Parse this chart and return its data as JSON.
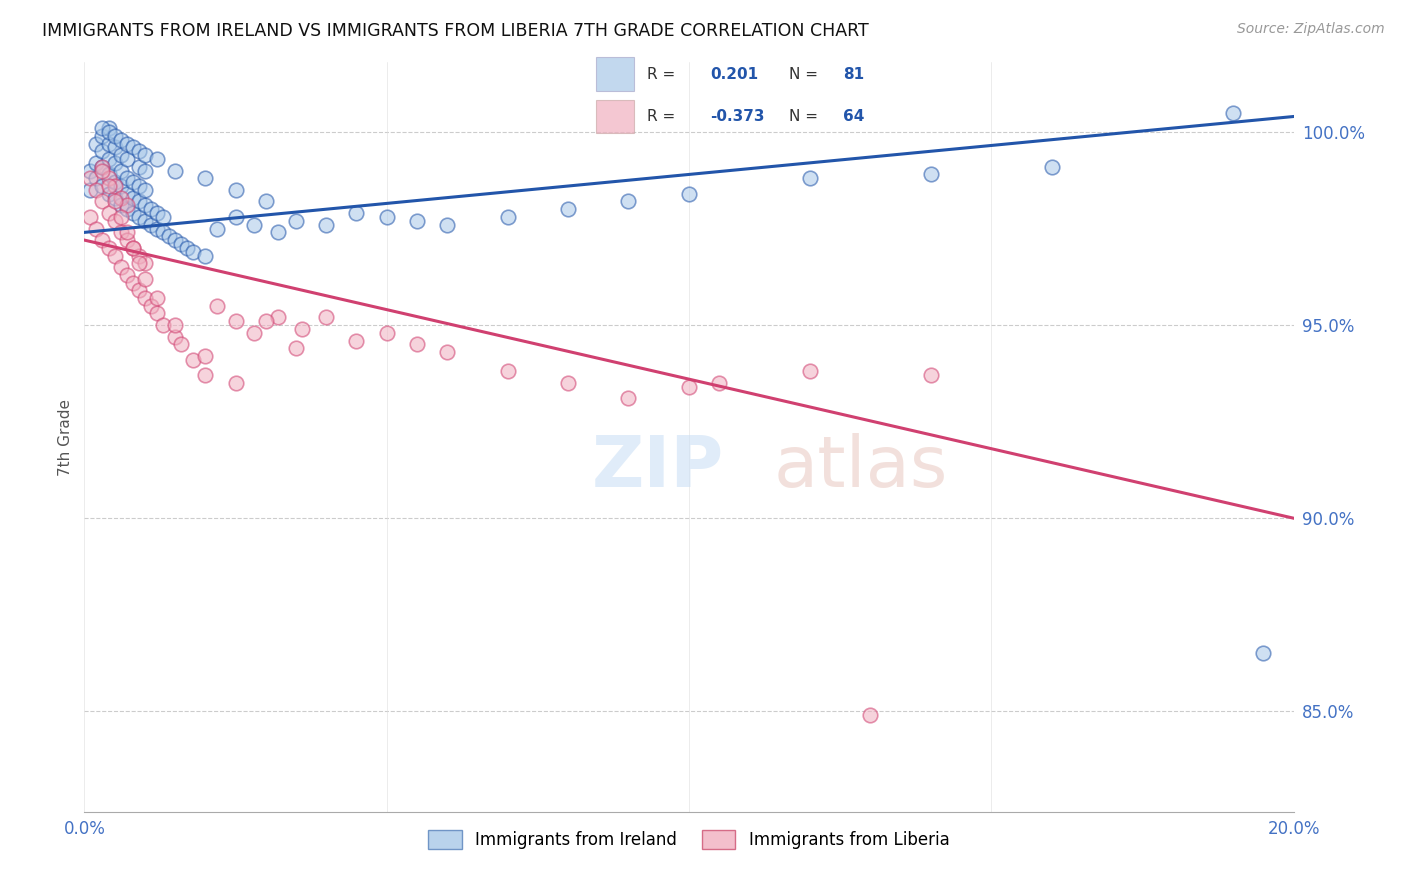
{
  "title": "IMMIGRANTS FROM IRELAND VS IMMIGRANTS FROM LIBERIA 7TH GRADE CORRELATION CHART",
  "source": "Source: ZipAtlas.com",
  "ylabel": "7th Grade",
  "xmin": 0.0,
  "xmax": 0.2,
  "ymin": 0.824,
  "ymax": 1.018,
  "yticks": [
    0.85,
    0.9,
    0.95,
    1.0
  ],
  "ytick_labels": [
    "85.0%",
    "90.0%",
    "95.0%",
    "100.0%"
  ],
  "xticks": [
    0.0,
    0.05,
    0.1,
    0.15,
    0.2
  ],
  "ireland_R": 0.201,
  "ireland_N": 81,
  "liberia_R": -0.373,
  "liberia_N": 64,
  "ireland_color": "#a8c8e8",
  "liberia_color": "#f0b0c0",
  "ireland_line_color": "#2255aa",
  "liberia_line_color": "#d04070",
  "ireland_line_y0": 0.974,
  "ireland_line_y1": 1.004,
  "liberia_line_y0": 0.972,
  "liberia_line_y1": 0.9,
  "ireland_x": [
    0.001,
    0.001,
    0.002,
    0.002,
    0.002,
    0.003,
    0.003,
    0.003,
    0.003,
    0.004,
    0.004,
    0.004,
    0.004,
    0.004,
    0.005,
    0.005,
    0.005,
    0.005,
    0.006,
    0.006,
    0.006,
    0.006,
    0.007,
    0.007,
    0.007,
    0.007,
    0.008,
    0.008,
    0.008,
    0.009,
    0.009,
    0.009,
    0.009,
    0.01,
    0.01,
    0.01,
    0.01,
    0.011,
    0.011,
    0.012,
    0.012,
    0.013,
    0.013,
    0.014,
    0.015,
    0.016,
    0.017,
    0.018,
    0.02,
    0.022,
    0.025,
    0.028,
    0.032,
    0.035,
    0.04,
    0.045,
    0.05,
    0.055,
    0.06,
    0.07,
    0.08,
    0.09,
    0.1,
    0.12,
    0.14,
    0.16,
    0.003,
    0.004,
    0.005,
    0.006,
    0.007,
    0.008,
    0.009,
    0.01,
    0.012,
    0.015,
    0.02,
    0.025,
    0.03,
    0.19,
    0.195
  ],
  "ireland_y": [
    0.985,
    0.99,
    0.988,
    0.992,
    0.997,
    0.986,
    0.991,
    0.995,
    0.999,
    0.984,
    0.989,
    0.993,
    0.997,
    1.001,
    0.983,
    0.987,
    0.992,
    0.996,
    0.981,
    0.986,
    0.99,
    0.994,
    0.98,
    0.984,
    0.988,
    0.993,
    0.979,
    0.983,
    0.987,
    0.978,
    0.982,
    0.986,
    0.991,
    0.977,
    0.981,
    0.985,
    0.99,
    0.976,
    0.98,
    0.975,
    0.979,
    0.974,
    0.978,
    0.973,
    0.972,
    0.971,
    0.97,
    0.969,
    0.968,
    0.975,
    0.978,
    0.976,
    0.974,
    0.977,
    0.976,
    0.979,
    0.978,
    0.977,
    0.976,
    0.978,
    0.98,
    0.982,
    0.984,
    0.988,
    0.989,
    0.991,
    1.001,
    1.0,
    0.999,
    0.998,
    0.997,
    0.996,
    0.995,
    0.994,
    0.993,
    0.99,
    0.988,
    0.985,
    0.982,
    1.005,
    0.865
  ],
  "liberia_x": [
    0.001,
    0.001,
    0.002,
    0.002,
    0.003,
    0.003,
    0.003,
    0.004,
    0.004,
    0.004,
    0.005,
    0.005,
    0.005,
    0.006,
    0.006,
    0.006,
    0.007,
    0.007,
    0.007,
    0.008,
    0.008,
    0.009,
    0.009,
    0.01,
    0.01,
    0.011,
    0.012,
    0.013,
    0.015,
    0.016,
    0.018,
    0.02,
    0.022,
    0.025,
    0.028,
    0.032,
    0.036,
    0.04,
    0.045,
    0.05,
    0.055,
    0.06,
    0.07,
    0.08,
    0.09,
    0.1,
    0.12,
    0.14,
    0.003,
    0.004,
    0.005,
    0.006,
    0.007,
    0.008,
    0.009,
    0.01,
    0.012,
    0.015,
    0.02,
    0.025,
    0.03,
    0.035,
    0.13,
    0.105
  ],
  "liberia_y": [
    0.978,
    0.988,
    0.975,
    0.985,
    0.972,
    0.982,
    0.991,
    0.97,
    0.979,
    0.988,
    0.968,
    0.977,
    0.986,
    0.965,
    0.974,
    0.983,
    0.963,
    0.972,
    0.981,
    0.961,
    0.97,
    0.959,
    0.968,
    0.957,
    0.966,
    0.955,
    0.953,
    0.95,
    0.947,
    0.945,
    0.941,
    0.937,
    0.955,
    0.951,
    0.948,
    0.952,
    0.949,
    0.952,
    0.946,
    0.948,
    0.945,
    0.943,
    0.938,
    0.935,
    0.931,
    0.934,
    0.938,
    0.937,
    0.99,
    0.986,
    0.982,
    0.978,
    0.974,
    0.97,
    0.966,
    0.962,
    0.957,
    0.95,
    0.942,
    0.935,
    0.951,
    0.944,
    0.849,
    0.935
  ]
}
